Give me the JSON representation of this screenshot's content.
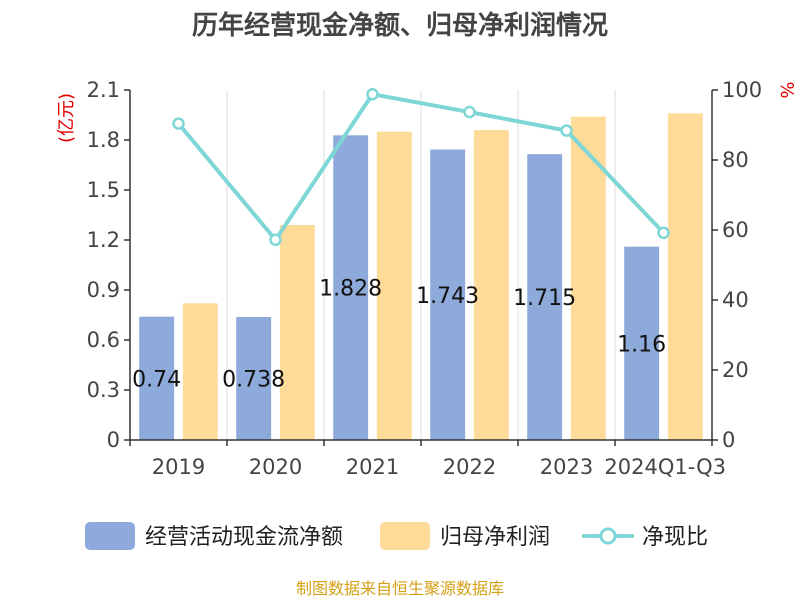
{
  "chart_data": {
    "type": "bar",
    "title": "历年经营现金净额、归母净利润情况",
    "left_unit": "(亿元)",
    "right_unit": "%",
    "categories": [
      "2019",
      "2020",
      "2021",
      "2022",
      "2023",
      "2024Q1-Q3"
    ],
    "left_ticks": [
      "0",
      "0.3",
      "0.6",
      "0.9",
      "1.2",
      "1.5",
      "1.8",
      "2.1"
    ],
    "right_ticks": [
      "0",
      "20",
      "40",
      "60",
      "80",
      "100"
    ],
    "ylim_left": [
      0,
      2.1
    ],
    "ylim_right": [
      0,
      100
    ],
    "grid": "vertical",
    "legend_position": "bottom",
    "series": [
      {
        "name": "经营活动现金流净额",
        "kind": "bar",
        "axis": "left",
        "color": "#8eaadb",
        "values": [
          0.74,
          0.738,
          1.828,
          1.743,
          1.715,
          1.16
        ],
        "labels": [
          "0.74",
          "0.738",
          "1.828",
          "1.743",
          "1.715",
          "1.16"
        ]
      },
      {
        "name": "归母净利润",
        "kind": "bar",
        "axis": "left",
        "color": "#ffdb9a",
        "values": [
          0.82,
          1.29,
          1.85,
          1.86,
          1.94,
          1.96
        ]
      },
      {
        "name": "净现比",
        "kind": "line",
        "axis": "right",
        "color": "#7ed6d6",
        "values": [
          90.4,
          57.2,
          98.8,
          93.7,
          88.4,
          59.2
        ]
      }
    ]
  },
  "footer": "制图数据来自恒生聚源数据库"
}
